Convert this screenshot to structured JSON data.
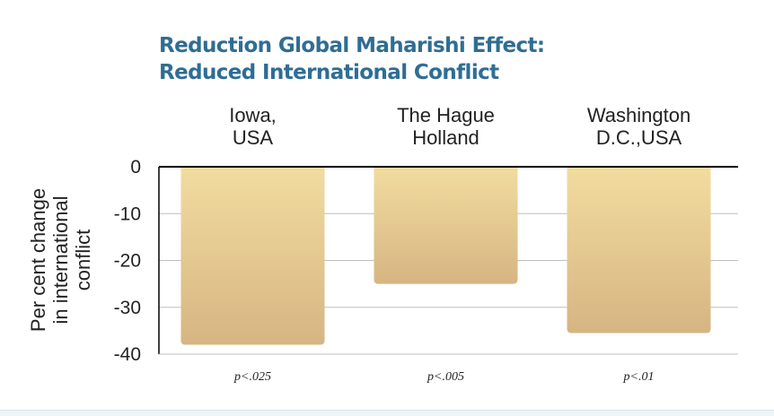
{
  "chart_data": {
    "type": "bar",
    "title": [
      "Reduction Global Maharishi Effect:",
      "Reduced International Conflict"
    ],
    "categories": [
      [
        "Iowa,",
        "USA"
      ],
      [
        "The Hague",
        "Holland"
      ],
      [
        "Washington",
        "D.C.,USA"
      ]
    ],
    "values": [
      -38,
      -25,
      -35.5
    ],
    "significance": [
      "p<.025",
      "p<.005",
      "p<.01"
    ],
    "ylabel": [
      "Per cent change",
      "in international",
      "conflict"
    ],
    "xlabel": "",
    "ylim": [
      -40,
      0
    ],
    "yticks": [
      0,
      -10,
      -20,
      -30,
      -40
    ],
    "grid": true,
    "bar_gradient": [
      "#f2dc9f",
      "#d6b582"
    ],
    "grid_color": "#bfbfbf",
    "axis_color": "#000000",
    "title_color": "#2f6d94"
  }
}
